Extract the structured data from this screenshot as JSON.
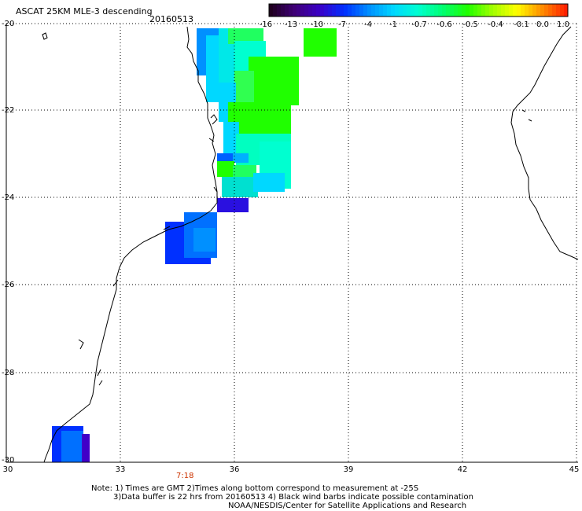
{
  "title": "ASCAT 25KM MLE-3 descending",
  "date": "20160513",
  "colorbar": {
    "labels": [
      "-16",
      "-13",
      "-10",
      "-7",
      "-4",
      "-1",
      "-0.7",
      "-0.6",
      "-0.5",
      "-0.4",
      "-0.1",
      "0.0",
      "1.0"
    ],
    "colors": [
      "#200020",
      "#40007a",
      "#3a00c8",
      "#0030ff",
      "#0090ff",
      "#00d8ff",
      "#00ffd0",
      "#00ff70",
      "#20ff00",
      "#a0ff00",
      "#ffff00",
      "#ff9000",
      "#ff2000"
    ]
  },
  "axes": {
    "lat_labels": [
      "-20",
      "-22",
      "-24",
      "-26",
      "-28",
      "-30"
    ],
    "lon_labels": [
      "30",
      "33",
      "36",
      "39",
      "42",
      "45"
    ]
  },
  "time_label": "7:18",
  "notes": {
    "line1": "Note: 1) Times are GMT 2)Times along bottom correspond to measurement at -25S",
    "line2": "3)Data buffer is 22 hrs from 20160513 4) Black wind barbs indicate possible contamination",
    "line3": "NOAA/NESDIS/Center for Satellite Applications and Research"
  }
}
